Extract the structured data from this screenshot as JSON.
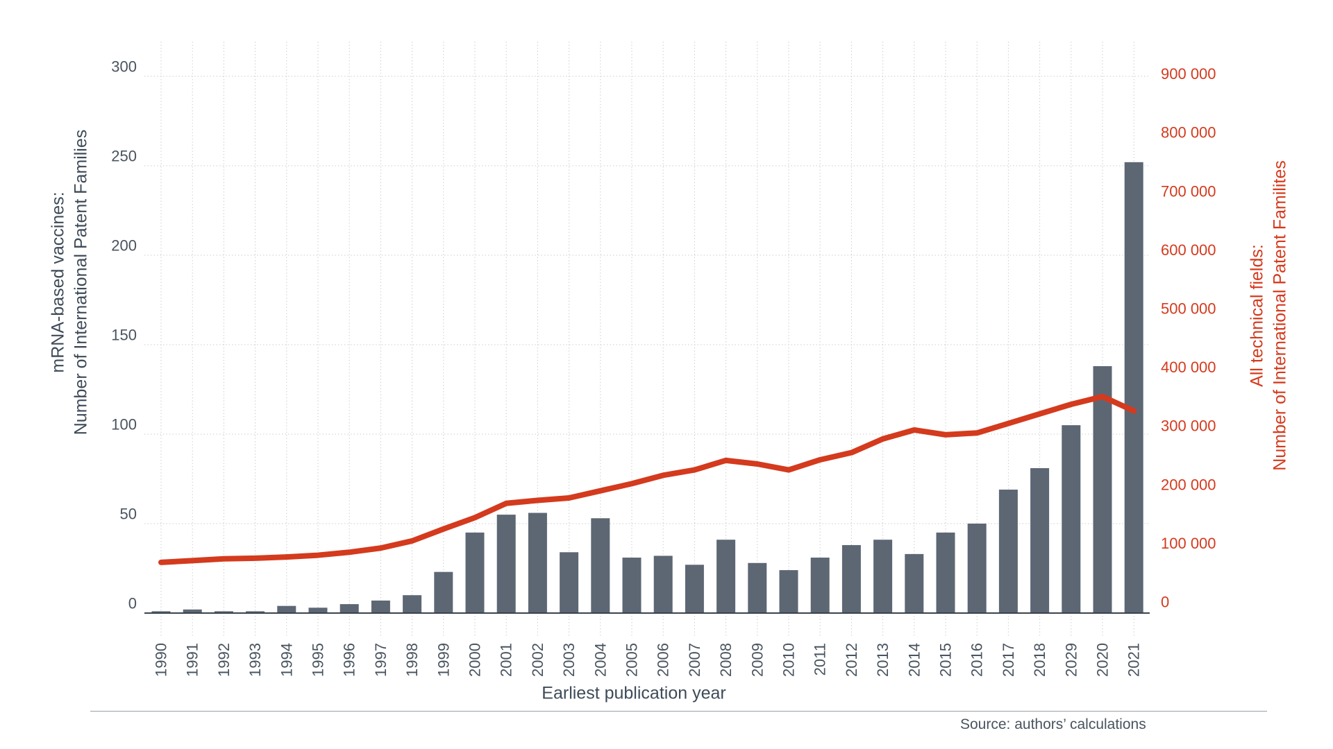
{
  "chart_data": {
    "type": "combo-bar-line",
    "title": "",
    "xlabel": "Earliest publication year",
    "categories": [
      "1990",
      "1991",
      "1992",
      "1993",
      "1994",
      "1995",
      "1996",
      "1997",
      "1998",
      "1999",
      "2000",
      "2001",
      "2002",
      "2003",
      "2004",
      "2005",
      "2006",
      "2007",
      "2008",
      "2009",
      "2010",
      "2011",
      "2012",
      "2013",
      "2014",
      "2015",
      "2016",
      "2017",
      "2018",
      "2029",
      "2020",
      "2021"
    ],
    "series": [
      {
        "name": "mRNA-based vaccines: Number of International Patent Families",
        "type": "bar",
        "axis": "left",
        "values": [
          1,
          2,
          1,
          1,
          4,
          3,
          5,
          7,
          10,
          23,
          45,
          55,
          56,
          34,
          53,
          31,
          32,
          27,
          41,
          28,
          24,
          31,
          38,
          41,
          33,
          45,
          50,
          69,
          81,
          105,
          138,
          252
        ]
      },
      {
        "name": "All technical fields: Number of International Patent Familites",
        "type": "line",
        "axis": "right",
        "values": [
          85000,
          88000,
          91000,
          92000,
          94000,
          97000,
          102000,
          109000,
          121000,
          141000,
          160000,
          184000,
          189000,
          193000,
          205000,
          217000,
          231000,
          240000,
          256000,
          250000,
          240000,
          257000,
          269000,
          292000,
          307000,
          299000,
          302000,
          318000,
          334000,
          350000,
          363000,
          339000
        ]
      }
    ],
    "left_axis": {
      "title": [
        "mRNA-based vaccines:",
        "Number of International Patent Families"
      ],
      "ticks": [
        "0",
        "50",
        "100",
        "150",
        "200",
        "250",
        "300"
      ],
      "min": 0,
      "max": 300
    },
    "right_axis": {
      "title": [
        "All technical fields:",
        "Number of International Patent Familites"
      ],
      "ticks": [
        "0",
        "100 000",
        "200 000",
        "300 000",
        "400 000",
        "500 000",
        "600 000",
        "700 000",
        "800 000",
        "900 000"
      ],
      "min": 0,
      "max": 900000
    },
    "grid": {
      "horizontal": "dotted",
      "vertical": "dotted",
      "legend": "none"
    },
    "colors": {
      "bar": "#5d6774",
      "line": "#d43a1d",
      "axis_text": "#49545f",
      "title_text": "#3e4b58",
      "right_text": "#d43a1d",
      "gridline": "#c9cdd1",
      "axis_line": "#39434d",
      "rule": "#99a0a7"
    }
  },
  "footer": {
    "source": "Source: authors’ calculations"
  }
}
